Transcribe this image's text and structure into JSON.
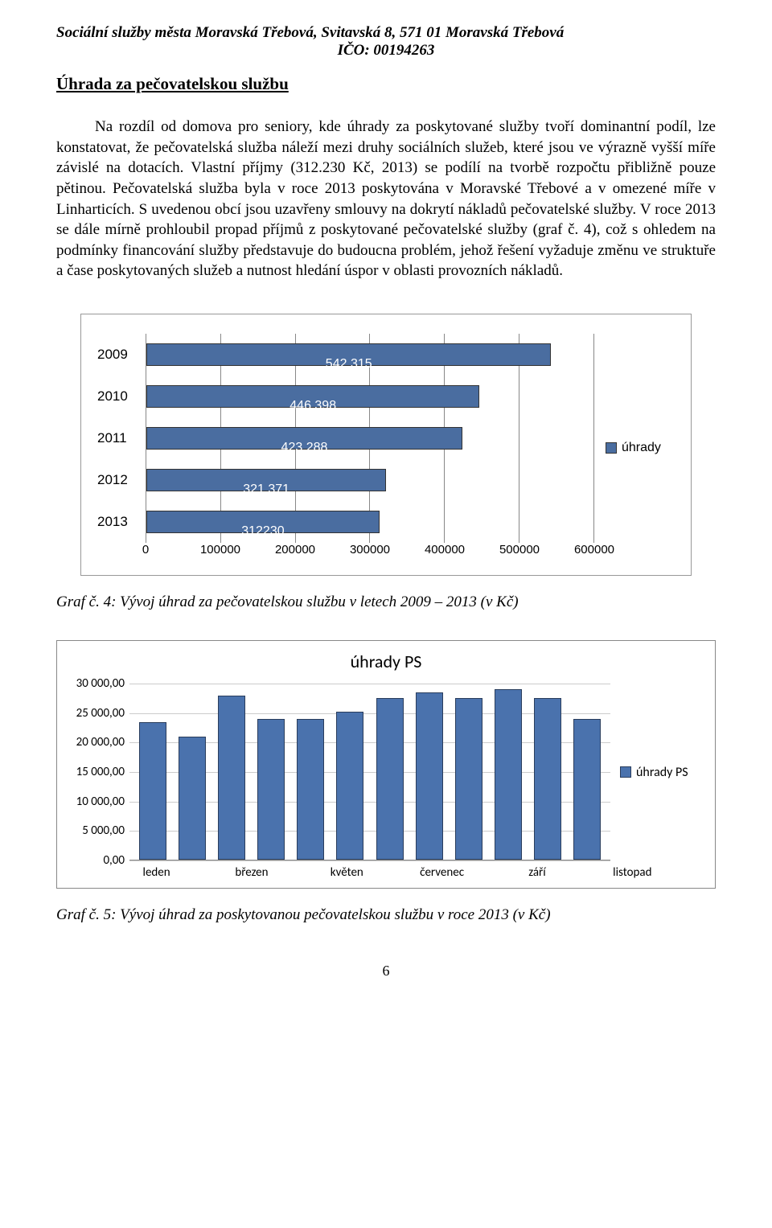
{
  "header": {
    "line1": "Sociální služby města Moravská Třebová, Svitavská 8, 571 01 Moravská Třebová",
    "line2": "IČO: 00194263"
  },
  "section_title": "Úhrada za pečovatelskou službu",
  "body": "Na rozdíl od domova pro seniory, kde úhrady za poskytované služby tvoří dominantní podíl, lze konstatovat, že pečovatelská služba náleží mezi druhy sociálních služeb, které jsou ve výrazně vyšší míře závislé na dotacích. Vlastní příjmy (312.230 Kč, 2013) se podílí na tvorbě rozpočtu přibližně pouze pětinou. Pečovatelská služba byla v roce 2013 poskytována v Moravské Třebové a v omezené míře v Linharticích. S uvedenou obcí jsou uzavřeny smlouvy na dokrytí nákladů pečovatelské služby. V roce 2013 se dále mírně prohloubil propad příjmů z poskytované pečovatelské služby (graf č. 4), což s ohledem na podmínky financování služby představuje do budoucna problém, jehož řešení vyžaduje změnu ve struktuře a čase poskytovaných služeb a nutnost hledání úspor v oblasti provozních nákladů.",
  "chart1": {
    "type": "bar",
    "categories": [
      "2009",
      "2010",
      "2011",
      "2012",
      "2013"
    ],
    "values": [
      542315,
      446398,
      423288,
      321371,
      312230
    ],
    "value_labels": [
      "542 315",
      "446 398",
      "423 288",
      "321 371",
      "312230"
    ],
    "xlim": [
      0,
      600000
    ],
    "xticks": [
      "0",
      "100000",
      "200000",
      "300000",
      "400000",
      "500000",
      "600000"
    ],
    "bar_color": "#4a6da0",
    "bar_border": "#333333",
    "grid_color": "#888888",
    "background_color": "#ffffff",
    "legend_label": "úhrady",
    "label_fontsize": 15,
    "title_fontsize": 0
  },
  "caption1": "Graf č. 4: Vývoj úhrad za pečovatelskou službu v letech 2009 – 2013 (v Kč)",
  "chart2": {
    "type": "bar",
    "title": "úhrady PS",
    "categories_visible": [
      "leden",
      "březen",
      "květen",
      "červenec",
      "září",
      "listopad"
    ],
    "values": [
      23500,
      21000,
      28000,
      24000,
      24000,
      25200,
      27500,
      28500,
      27500,
      29000,
      27500,
      24000
    ],
    "ylim": [
      0,
      30000
    ],
    "yticks": [
      "0,00",
      "5 000,00",
      "10 000,00",
      "15 000,00",
      "20 000,00",
      "25 000,00",
      "30 000,00"
    ],
    "bar_color": "#4a72ad",
    "bar_border": "#2a3d5c",
    "grid_color": "#cccccc",
    "background_color": "#ffffff",
    "legend_label": "úhrady PS",
    "title_fontsize": 20,
    "label_fontsize": 15
  },
  "caption2": "Graf č. 5: Vývoj úhrad za poskytovanou pečovatelskou službu v roce 2013 (v Kč)",
  "page_number": "6"
}
